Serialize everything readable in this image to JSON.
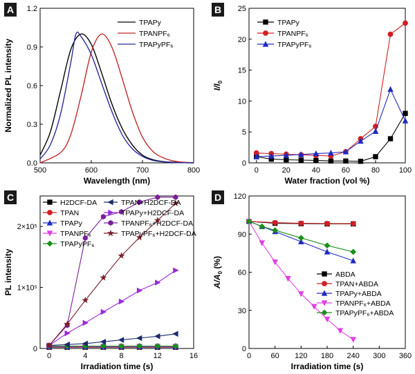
{
  "chart_data": [
    {
      "panel": "A",
      "type": "line",
      "xlabel": "Wavelength (nm)",
      "ylabel": "Normalized PL intensity",
      "xlim": [
        500,
        800
      ],
      "ylim": [
        0,
        1.2
      ],
      "xticks": [
        "500",
        "600",
        "700",
        "800"
      ],
      "yticks": [
        "0.0",
        "0.3",
        "0.6",
        "0.9",
        "1.2"
      ],
      "legend": "top-right",
      "series": [
        {
          "name": "TPAPy",
          "color": "#000000",
          "x": [
            500,
            520,
            540,
            560,
            580,
            600,
            620,
            640,
            660,
            680,
            700,
            720,
            740,
            760,
            780,
            800
          ],
          "y": [
            0.06,
            0.24,
            0.56,
            0.88,
            1.0,
            0.92,
            0.7,
            0.46,
            0.27,
            0.14,
            0.06,
            0.025,
            0.01,
            0.005,
            0.002,
            0.0
          ]
        },
        {
          "name": "TPANPF₆",
          "color": "#c0282a",
          "x": [
            500,
            540,
            560,
            580,
            600,
            620,
            640,
            660,
            680,
            700,
            720,
            740,
            760,
            780,
            800
          ],
          "y": [
            0.0,
            0.08,
            0.22,
            0.52,
            0.86,
            1.0,
            0.9,
            0.66,
            0.4,
            0.2,
            0.09,
            0.04,
            0.015,
            0.005,
            0.0
          ]
        },
        {
          "name": "TPAPyPF₆",
          "color": "#2b2b9e",
          "x": [
            500,
            520,
            540,
            560,
            570,
            580,
            600,
            620,
            640,
            660,
            680,
            700,
            720,
            740,
            760,
            780,
            800
          ],
          "y": [
            0.03,
            0.14,
            0.38,
            0.78,
            1.0,
            0.98,
            0.84,
            0.62,
            0.4,
            0.22,
            0.11,
            0.05,
            0.02,
            0.008,
            0.003,
            0.001,
            0.0
          ]
        }
      ]
    },
    {
      "panel": "B",
      "type": "line",
      "xlabel": "Water fraction (vol %)",
      "ylabel": "I/I0",
      "xlim": [
        -5,
        100
      ],
      "ylim": [
        0,
        25
      ],
      "xticks": [
        "0",
        "20",
        "40",
        "60",
        "80",
        "100"
      ],
      "yticks": [
        "0",
        "5",
        "10",
        "15",
        "20",
        "25"
      ],
      "legend": "top-left",
      "series": [
        {
          "name": "TPAPy",
          "color": "#000000",
          "marker": "square",
          "x": [
            0,
            10,
            20,
            30,
            40,
            50,
            60,
            70,
            80,
            90,
            100
          ],
          "y": [
            1.0,
            0.6,
            0.5,
            0.45,
            0.4,
            0.3,
            0.3,
            0.25,
            1.0,
            3.9,
            8.0
          ]
        },
        {
          "name": "TPANPF₆",
          "color": "#d11f23",
          "marker": "circle",
          "x": [
            0,
            10,
            20,
            30,
            40,
            50,
            60,
            70,
            80,
            90,
            100
          ],
          "y": [
            1.6,
            1.5,
            1.4,
            1.3,
            1.2,
            1.1,
            1.8,
            3.9,
            5.9,
            20.8,
            22.6
          ]
        },
        {
          "name": "TPAPyPF₆",
          "color": "#1f2bbf",
          "marker": "triangle",
          "x": [
            0,
            10,
            20,
            30,
            40,
            50,
            60,
            70,
            80,
            90,
            100
          ],
          "y": [
            1.0,
            1.1,
            1.2,
            1.35,
            1.5,
            1.6,
            1.8,
            3.5,
            5.1,
            11.9,
            6.8
          ]
        }
      ]
    },
    {
      "panel": "C",
      "type": "line",
      "xlabel": "Irradiation time (s)",
      "ylabel": "PL intensity",
      "xlim": [
        -1,
        16
      ],
      "ylim": [
        0,
        250000
      ],
      "xticks": [
        "0",
        "4",
        "8",
        "12",
        "16"
      ],
      "yticks": [
        "0",
        "1×10⁵",
        "2×10⁵"
      ],
      "legend": "top",
      "series": [
        {
          "name": "H2DCF-DA",
          "color": "#000000",
          "marker": "square",
          "x": [
            0,
            2,
            4,
            6,
            8,
            10,
            12,
            14
          ],
          "y": [
            2000,
            2000,
            2000,
            2000,
            2000,
            2000,
            2000,
            2000
          ]
        },
        {
          "name": "TPAN",
          "color": "#d11f23",
          "marker": "circle",
          "x": [
            0,
            2,
            4,
            6,
            8,
            10,
            12,
            14
          ],
          "y": [
            2500,
            2500,
            2500,
            2500,
            2500,
            2500,
            2500,
            2500
          ]
        },
        {
          "name": "TPAPy",
          "color": "#1f2bbf",
          "marker": "triangle",
          "x": [
            0,
            2,
            4,
            6,
            8,
            10,
            12,
            14
          ],
          "y": [
            3000,
            3000,
            3000,
            3000,
            3000,
            3000,
            3000,
            3000
          ]
        },
        {
          "name": "TPANPF₆",
          "color": "#e040e0",
          "marker": "triangle-down",
          "x": [
            0,
            2,
            4,
            6,
            8,
            10,
            12,
            14
          ],
          "y": [
            3500,
            3500,
            3500,
            3500,
            3500,
            3500,
            3500,
            3500
          ]
        },
        {
          "name": "TPAPyPF₆",
          "color": "#1a8f1a",
          "marker": "diamond",
          "x": [
            0,
            2,
            4,
            6,
            8,
            10,
            12,
            14
          ],
          "y": [
            4000,
            4000,
            4000,
            4000,
            4000,
            4000,
            4000,
            4000
          ]
        },
        {
          "name": "TPAN+H2DCF-DA",
          "color": "#1a2a6b",
          "marker": "triangle-left",
          "x": [
            0,
            2,
            4,
            6,
            8,
            10,
            12,
            14
          ],
          "y": [
            5000,
            6500,
            8000,
            11000,
            14000,
            17000,
            20000,
            24000
          ]
        },
        {
          "name": "TPAPy+H2DCF-DA",
          "color": "#9a2bd9",
          "marker": "triangle-right",
          "x": [
            0,
            2,
            4,
            6,
            8,
            10,
            12,
            14
          ],
          "y": [
            5000,
            25000,
            42000,
            60000,
            77000,
            95000,
            108000,
            128000
          ]
        },
        {
          "name": "TPANPF₆+H2DCF-DA",
          "color": "#7a1f9a",
          "marker": "hexagon",
          "x": [
            0,
            2,
            4,
            6,
            8,
            10,
            12,
            14
          ],
          "y": [
            5000,
            38000,
            181000,
            216000,
            224000,
            240000,
            248000,
            248000
          ]
        },
        {
          "name": "TPAPyPF₆+H2DCF-DA",
          "color": "#7a1f2a",
          "marker": "star",
          "x": [
            0,
            2,
            4,
            6,
            8,
            10,
            12,
            14
          ],
          "y": [
            5000,
            40000,
            79000,
            116000,
            152000,
            182000,
            210000,
            238000
          ]
        }
      ]
    },
    {
      "panel": "D",
      "type": "line",
      "xlabel": "Irradiation time (s)",
      "ylabel": "A/A0 (%)",
      "xlim": [
        0,
        360
      ],
      "ylim": [
        0,
        120
      ],
      "xticks": [
        "0",
        "60",
        "120",
        "180",
        "240",
        "300",
        "360"
      ],
      "yticks": [
        "0",
        "30",
        "60",
        "90",
        "120"
      ],
      "legend": "bottom-right",
      "series": [
        {
          "name": "ABDA",
          "color": "#000000",
          "marker": "square",
          "x": [
            0,
            60,
            120,
            180,
            240
          ],
          "y": [
            100,
            98.5,
            98.2,
            98,
            98
          ]
        },
        {
          "name": "TPAN+ABDA",
          "color": "#d11f23",
          "marker": "circle",
          "x": [
            0,
            60,
            120,
            180,
            240
          ],
          "y": [
            100,
            99,
            98.5,
            98.3,
            98.2
          ]
        },
        {
          "name": "TPAPy+ABDA",
          "color": "#1f2bbf",
          "marker": "triangle",
          "x": [
            0,
            30,
            60,
            120,
            180,
            240
          ],
          "y": [
            100,
            96,
            92,
            84,
            76,
            69
          ]
        },
        {
          "name": "TPANPF₆+ABDA",
          "color": "#e040e0",
          "marker": "triangle-down",
          "x": [
            0,
            30,
            60,
            90,
            120,
            150,
            180,
            210,
            240
          ],
          "y": [
            100,
            83,
            68,
            55,
            43,
            33,
            23,
            14,
            7
          ]
        },
        {
          "name": "TPAPyPF₆+ABDA",
          "color": "#1a8f1a",
          "marker": "diamond",
          "x": [
            0,
            30,
            60,
            120,
            180,
            240
          ],
          "y": [
            100,
            96,
            93,
            87,
            81,
            76
          ]
        }
      ]
    }
  ]
}
